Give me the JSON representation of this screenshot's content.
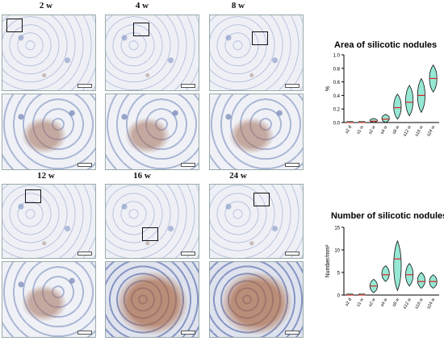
{
  "panels": [
    {
      "label": "2 w"
    },
    {
      "label": "4 w"
    },
    {
      "label": "8 w"
    },
    {
      "label": "12 w"
    },
    {
      "label": "16 w"
    },
    {
      "label": "24 w"
    }
  ],
  "chart_data": [
    {
      "type": "violin",
      "title": "Area of silicotic nodules",
      "xlabel": "",
      "ylabel": "%",
      "ylim": [
        0,
        1.0
      ],
      "yticks": [
        "0.0",
        "0.2",
        "0.4",
        "0.6",
        "0.8",
        "1.0"
      ],
      "categories": [
        "s2 d",
        "s1 w",
        "s2 w",
        "s4 w",
        "s8 w",
        "s12 w",
        "s16 w",
        "s24 w"
      ],
      "medians": [
        0.0,
        0.0,
        0.02,
        0.05,
        0.22,
        0.3,
        0.4,
        0.65
      ],
      "mins": [
        0.0,
        0.0,
        0.0,
        0.0,
        0.05,
        0.1,
        0.15,
        0.45
      ],
      "maxs": [
        0.01,
        0.01,
        0.06,
        0.12,
        0.42,
        0.55,
        0.65,
        0.85
      ],
      "grid": false
    },
    {
      "type": "violin",
      "title": "Number of silicotic nodules",
      "xlabel": "",
      "ylabel": "Number/mm²",
      "ylim": [
        0,
        15
      ],
      "yticks": [
        "0",
        "5",
        "10",
        "15"
      ],
      "categories": [
        "s2 d",
        "s1 w",
        "s2 w",
        "s4 w",
        "s8 w",
        "s12 w",
        "s16 w",
        "s24 w"
      ],
      "medians": [
        0.0,
        0.0,
        2.0,
        4.5,
        8.0,
        4.5,
        3.0,
        3.0
      ],
      "mins": [
        0.0,
        0.0,
        0.5,
        3.0,
        1.0,
        2.0,
        1.5,
        1.5
      ],
      "maxs": [
        0.2,
        0.2,
        3.5,
        6.5,
        12.0,
        7.0,
        5.0,
        4.5
      ],
      "grid": false
    }
  ],
  "colors": {
    "violin_fill": "#3fd6b0",
    "median": "#e02020",
    "outline": "#111111"
  }
}
